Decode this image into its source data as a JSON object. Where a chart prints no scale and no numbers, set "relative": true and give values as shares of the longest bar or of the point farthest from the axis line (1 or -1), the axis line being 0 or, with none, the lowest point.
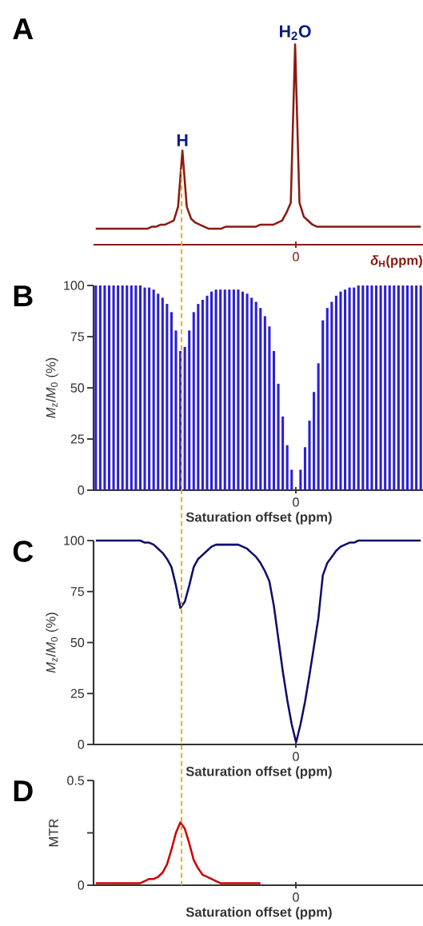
{
  "chart_data": [
    {
      "type": "line",
      "title": "A",
      "relative": true,
      "xlabel": "*δ*$_{H}$(ppm)",
      "categories": [
        null,
        null,
        null,
        null,
        null,
        null,
        null,
        null,
        null,
        null,
        null,
        null,
        null,
        null,
        null,
        null,
        null,
        null,
        null,
        null,
        null,
        null,
        null,
        null,
        null,
        null,
        null,
        null,
        null,
        null,
        null,
        null,
        null,
        null,
        null,
        null,
        null,
        null,
        null,
        null,
        null,
        null,
        null,
        null,
        null,
        null,
        null,
        null,
        null,
        null,
        null,
        null,
        null,
        null,
        null,
        null,
        null,
        null,
        null,
        null,
        null,
        null,
        null,
        null,
        null,
        null,
        null,
        null,
        null,
        null,
        null,
        null,
        null,
        null,
        null,
        null
      ],
      "series": [
        {
          "color": "#8b1a10",
          "values": [
            0.08,
            0.08,
            0.08,
            0.08,
            0.08,
            0.08,
            0.08,
            0.08,
            0.08,
            0.08,
            0.08,
            0.08,
            0.08,
            0.09,
            0.09,
            0.1,
            0.1,
            0.11,
            0.12,
            0.19,
            0.47,
            0.19,
            0.13,
            0.11,
            0.1,
            0.09,
            0.08,
            0.08,
            0.08,
            0.08,
            0.09,
            0.09,
            0.09,
            0.09,
            0.09,
            0.09,
            0.09,
            0.09,
            0.1,
            0.1,
            0.1,
            0.1,
            0.11,
            0.12,
            0.16,
            0.21,
            1.0,
            0.21,
            0.14,
            0.12,
            0.1,
            0.09,
            0.09,
            0.09,
            0.09,
            0.09,
            0.09,
            0.09,
            0.09,
            0.09,
            0.09,
            0.09,
            0.09,
            0.09,
            0.09,
            0.09,
            0.09,
            0.09,
            0.09,
            0.09,
            0.09,
            0.09,
            0.09,
            0.09,
            0.09,
            0.09
          ]
        }
      ],
      "annotations": [
        "H",
        "H$_{2}$O",
        "0"
      ]
    },
    {
      "type": "bar",
      "title": "B",
      "xlabel": "Saturation offset (ppm)",
      "ylabel": "*M*$_{z}$/*M*$_{0}$ (%)",
      "categories": [
        null,
        null,
        null,
        null,
        null,
        null,
        null,
        null,
        null,
        null,
        null,
        null,
        null,
        null,
        null,
        null,
        null,
        null,
        null,
        null,
        null,
        null,
        null,
        null,
        null,
        null,
        null,
        null,
        null,
        null,
        null,
        null,
        null,
        null,
        null,
        null,
        null,
        null,
        null,
        null,
        null,
        null,
        null,
        null,
        null,
        null,
        null,
        null,
        null,
        null,
        null,
        null,
        null,
        null,
        null,
        null,
        null,
        null,
        null,
        null,
        null,
        null,
        null,
        null,
        null,
        null,
        null,
        null,
        null,
        null,
        null,
        null,
        null,
        null
      ],
      "series": [
        {
          "color": "#2b1fd6",
          "values": [
            100,
            100,
            100,
            100,
            100,
            100,
            100,
            100,
            100,
            100,
            100,
            99,
            99,
            98,
            96,
            94,
            91,
            87,
            78,
            68,
            70,
            78,
            87,
            91,
            93,
            95,
            97,
            98,
            98,
            98,
            98,
            98,
            98,
            97,
            96,
            94,
            92,
            89,
            85,
            80,
            68,
            52,
            36,
            22,
            10,
            0,
            10,
            21,
            34,
            48,
            62,
            83,
            89,
            92,
            95,
            97,
            98,
            99,
            99,
            100,
            100,
            100,
            100,
            100,
            100,
            100,
            100,
            100,
            100,
            100,
            100,
            100,
            100,
            100
          ]
        }
      ],
      "ylim": [
        0,
        100
      ],
      "yticks": [
        0,
        25,
        50,
        75,
        100
      ],
      "annotations": [
        "0"
      ]
    },
    {
      "type": "line",
      "title": "C",
      "xlabel": "Saturation offset (ppm)",
      "ylabel": "*M*$_{z}$/*M*$_{0}$ (%)",
      "categories": [
        null,
        null,
        null,
        null,
        null,
        null,
        null,
        null,
        null,
        null,
        null,
        null,
        null,
        null,
        null,
        null,
        null,
        null,
        null,
        null,
        null,
        null,
        null,
        null,
        null,
        null,
        null,
        null,
        null,
        null,
        null,
        null,
        null,
        null,
        null,
        null,
        null,
        null,
        null,
        null,
        null,
        null,
        null,
        null,
        null,
        null,
        null,
        null,
        null,
        null,
        null,
        null,
        null,
        null,
        null,
        null,
        null,
        null,
        null,
        null,
        null,
        null,
        null,
        null,
        null,
        null,
        null,
        null,
        null,
        null,
        null,
        null,
        null,
        null
      ],
      "series": [
        {
          "color": "#0d0d6b",
          "values": [
            100,
            100,
            100,
            100,
            100,
            100,
            100,
            100,
            100,
            100,
            100,
            99,
            99,
            98,
            96,
            94,
            91,
            87,
            78,
            67,
            70,
            78,
            87,
            91,
            93,
            95,
            97,
            98,
            98,
            98,
            98,
            98,
            98,
            97,
            96,
            94,
            92,
            89,
            85,
            80,
            68,
            52,
            36,
            22,
            10,
            1,
            10,
            21,
            34,
            48,
            62,
            83,
            89,
            92,
            95,
            97,
            98,
            99,
            99,
            100,
            100,
            100,
            100,
            100,
            100,
            100,
            100,
            100,
            100,
            100,
            100,
            100,
            100,
            100
          ]
        }
      ],
      "ylim": [
        0,
        100
      ],
      "yticks": [
        0,
        25,
        50,
        75,
        100
      ],
      "annotations": [
        "0"
      ]
    },
    {
      "type": "line",
      "title": "D",
      "xlabel": "Saturation offset (ppm)",
      "ylabel": "MTR",
      "categories": [
        null,
        null,
        null,
        null,
        null,
        null,
        null,
        null,
        null,
        null,
        null,
        null,
        null,
        null,
        null,
        null,
        null,
        null,
        null,
        null,
        null,
        null,
        null,
        null,
        null,
        null,
        null,
        null,
        null,
        null,
        null,
        null,
        null,
        null,
        null,
        null,
        null,
        null,
        null,
        null,
        null,
        null,
        null,
        null,
        null,
        null,
        null,
        null,
        null,
        null,
        null,
        null,
        null,
        null,
        null,
        null,
        null,
        null,
        null,
        null,
        null,
        null,
        null,
        null,
        null,
        null,
        null,
        null,
        null,
        null,
        null,
        null,
        null,
        null
      ],
      "series": [
        {
          "color": "#cc0000",
          "values": [
            0.01,
            0.01,
            0.01,
            0.01,
            0.01,
            0.01,
            0.01,
            0.01,
            0.01,
            0.01,
            0.01,
            0.02,
            0.03,
            0.03,
            0.04,
            0.06,
            0.1,
            0.17,
            0.25,
            0.3,
            0.27,
            0.2,
            0.12,
            0.08,
            0.05,
            0.04,
            0.03,
            0.02,
            0.01,
            0.01,
            0.01,
            0.01,
            0.01,
            0.01,
            0.01,
            0.01,
            0.01,
            0.01,
            null,
            null,
            null,
            null,
            null,
            null,
            null,
            null,
            null,
            null,
            null,
            null,
            null,
            null,
            null,
            null,
            null,
            null,
            null,
            null,
            null,
            null,
            null,
            null,
            null,
            null,
            null,
            null,
            null,
            null,
            null,
            null,
            null,
            null,
            null,
            null
          ]
        }
      ],
      "ylim": [
        0,
        0.5
      ],
      "yticks": [
        0,
        {
          "value": 0.25,
          "label": null
        },
        0.5
      ],
      "annotations": [
        "0"
      ]
    }
  ]
}
